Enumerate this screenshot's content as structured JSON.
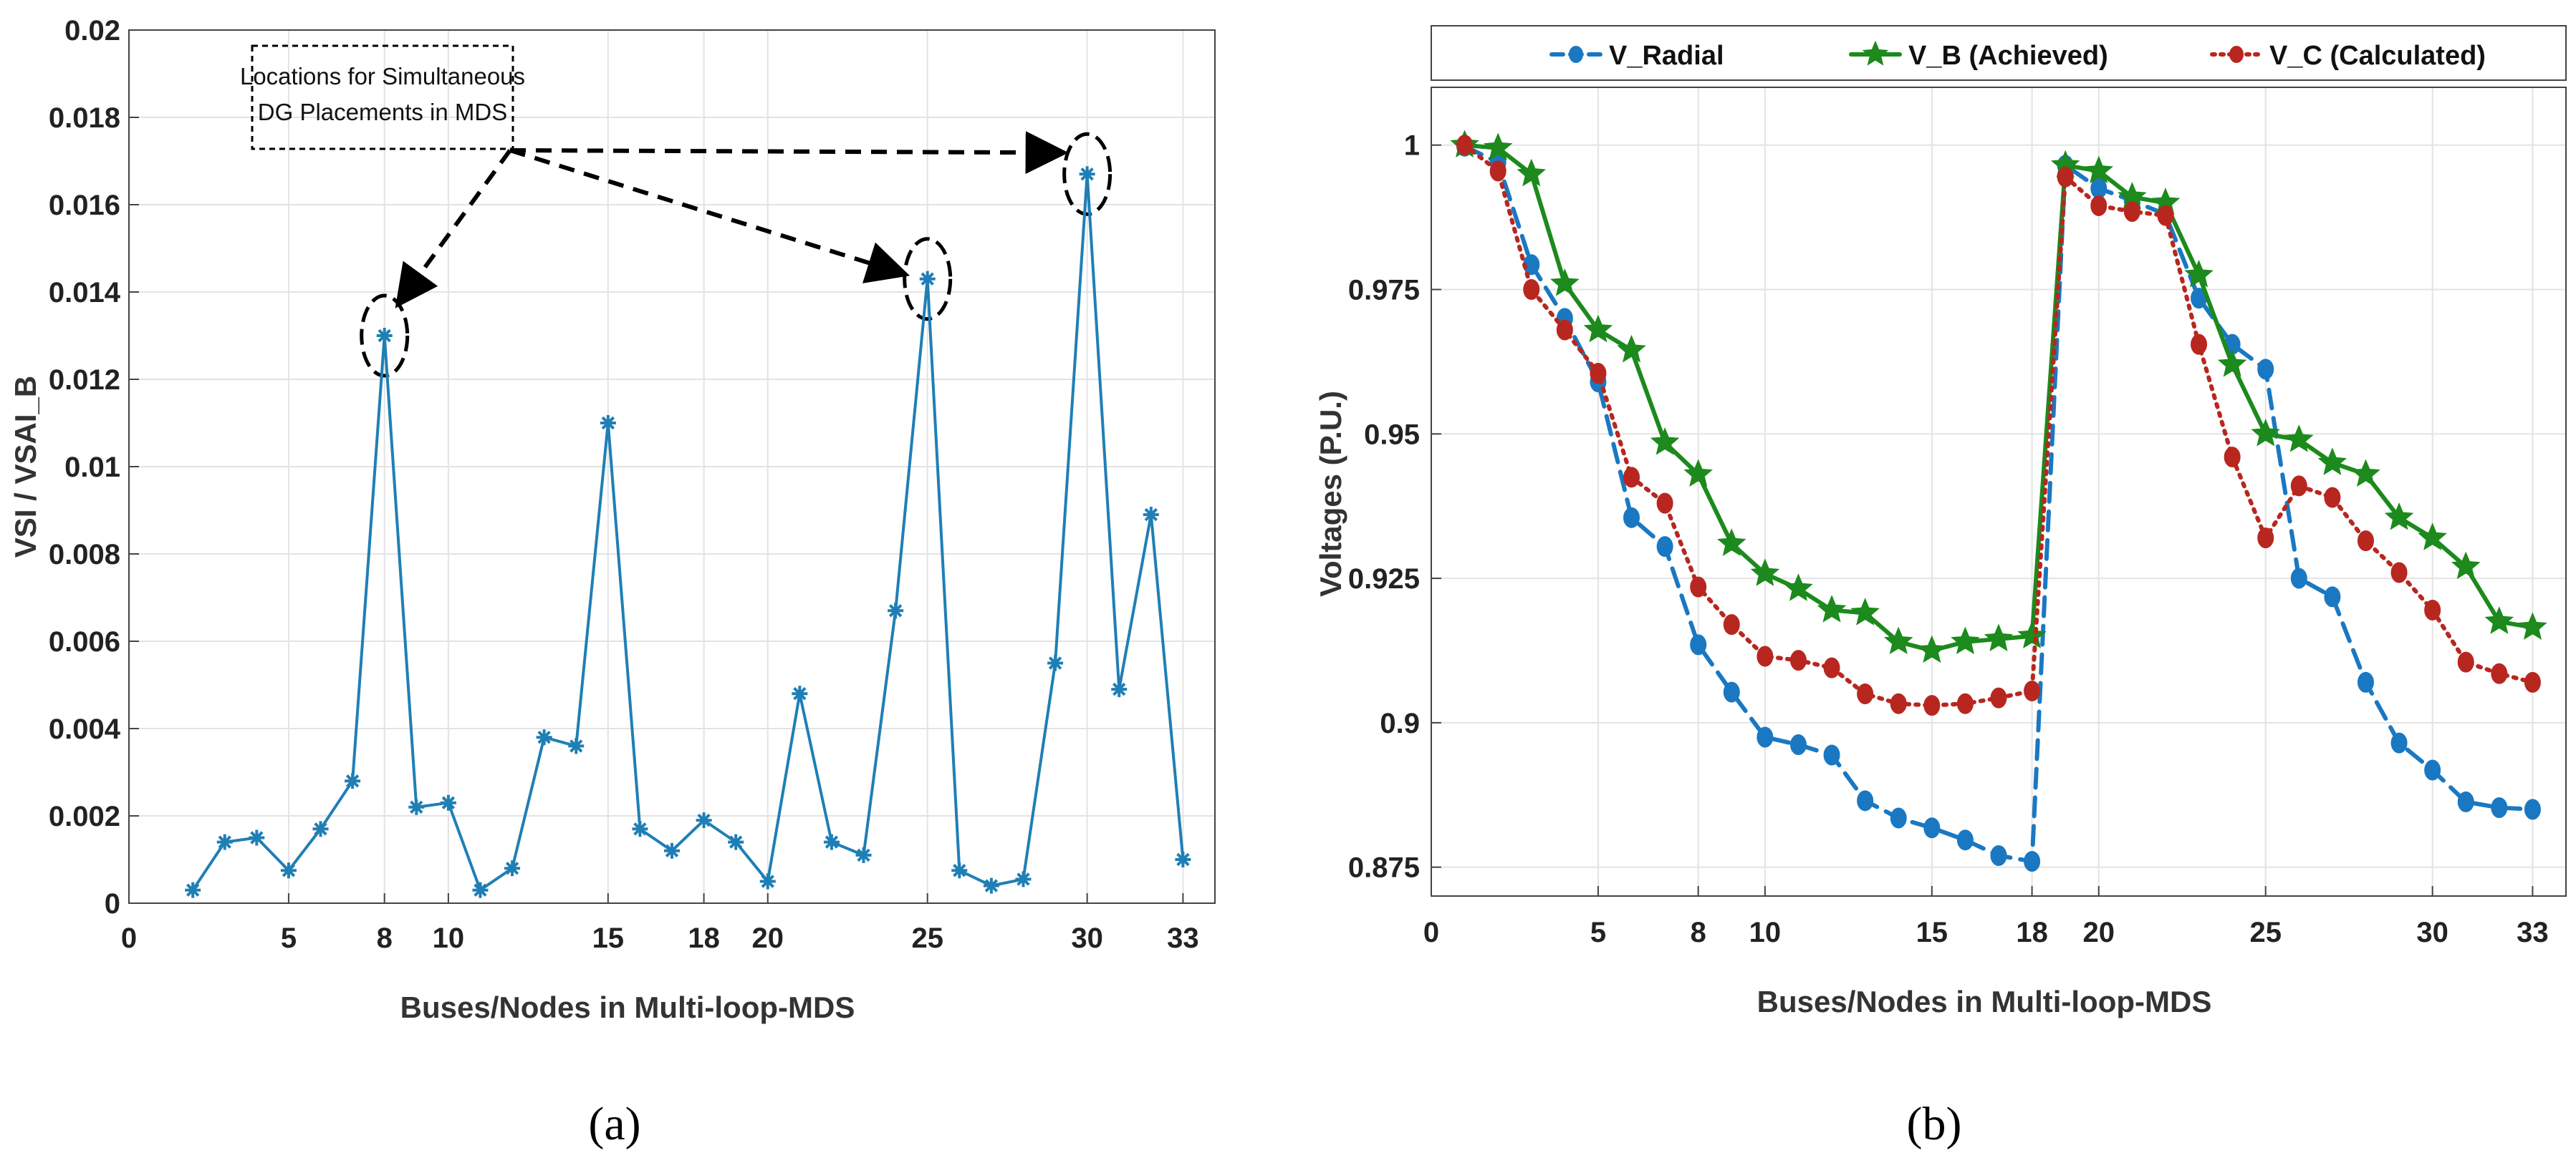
{
  "chart_data": [
    {
      "type": "line",
      "panel_caption": "(a)",
      "xlabel": "Buses/Nodes in Multi-loop-MDS",
      "ylabel": "VSI / VSAI_B",
      "xlim": [
        0,
        34
      ],
      "ylim": [
        0,
        0.02
      ],
      "xticks": [
        "0",
        "5",
        "8",
        "10",
        "15",
        "18",
        "20",
        "25",
        "30",
        "33"
      ],
      "yticks": [
        "0",
        "0.002",
        "0.004",
        "0.006",
        "0.008",
        "0.01",
        "0.012",
        "0.014",
        "0.016",
        "0.018",
        "0.02"
      ],
      "grid": true,
      "colors": {
        "series": "#1f7fb5",
        "annotation": "#000000"
      },
      "series": [
        {
          "marker": "asterisk",
          "x": [
            2,
            3,
            4,
            5,
            6,
            7,
            8,
            9,
            10,
            11,
            12,
            13,
            14,
            15,
            16,
            17,
            18,
            19,
            20,
            21,
            22,
            23,
            24,
            25,
            26,
            27,
            28,
            29,
            30,
            31,
            32,
            33
          ],
          "values": [
            0.0003,
            0.0014,
            0.0015,
            0.00075,
            0.0017,
            0.0028,
            0.013,
            0.0022,
            0.0023,
            0.0003,
            0.0008,
            0.0038,
            0.0036,
            0.011,
            0.0017,
            0.0012,
            0.0019,
            0.0014,
            0.0005,
            0.0048,
            0.0014,
            0.0011,
            0.0067,
            0.0143,
            0.00075,
            0.0004,
            0.00055,
            0.0055,
            0.0167,
            0.0049,
            0.0089,
            0.001
          ]
        }
      ],
      "annotation": {
        "text_line1": "Locations for Simultaneous",
        "text_line2": "DG Placements in MDS",
        "highlighted_points": [
          {
            "x": 8,
            "y": 0.013
          },
          {
            "x": 25,
            "y": 0.0143
          },
          {
            "x": 30,
            "y": 0.0167
          }
        ]
      }
    },
    {
      "type": "line",
      "panel_caption": "(b)",
      "xlabel": "Buses/Nodes in Multi-loop-MDS",
      "ylabel": "Voltages (P.U.)",
      "xlim": [
        0,
        34
      ],
      "ylim": [
        0.87,
        1.01
      ],
      "xticks": [
        "0",
        "5",
        "8",
        "10",
        "15",
        "18",
        "20",
        "25",
        "30",
        "33"
      ],
      "yticks": [
        "0.875",
        "0.9",
        "0.925",
        "0.95",
        "0.975",
        "1"
      ],
      "grid": true,
      "legend_position": "top",
      "x": [
        1,
        2,
        3,
        4,
        5,
        6,
        7,
        8,
        9,
        10,
        11,
        12,
        13,
        14,
        15,
        16,
        17,
        18,
        19,
        20,
        21,
        22,
        23,
        24,
        25,
        26,
        27,
        28,
        29,
        30,
        31,
        32,
        33
      ],
      "series": [
        {
          "name": "V_Radial",
          "color": "#1a78c2",
          "style": "dashed",
          "marker": "dot",
          "values": [
            0.9998,
            0.997,
            0.9793,
            0.97,
            0.959,
            0.9355,
            0.9305,
            0.9135,
            0.9053,
            0.8975,
            0.8962,
            0.8944,
            0.8865,
            0.8835,
            0.8818,
            0.8797,
            0.877,
            0.876,
            0.9965,
            0.9925,
            0.9904,
            0.988,
            0.9735,
            0.9655,
            0.9612,
            0.925,
            0.9218,
            0.907,
            0.8965,
            0.8918,
            0.8863,
            0.8853,
            0.885
          ]
        },
        {
          "name": "V_B (Achieved)",
          "color": "#1c8a1c",
          "style": "solid",
          "marker": "star",
          "values": [
            1.0,
            0.9995,
            0.995,
            0.976,
            0.968,
            0.9645,
            0.9485,
            0.943,
            0.931,
            0.9258,
            0.9232,
            0.9195,
            0.919,
            0.914,
            0.9125,
            0.914,
            0.9145,
            0.915,
            0.9965,
            0.9955,
            0.991,
            0.99,
            0.9775,
            0.962,
            0.95,
            0.949,
            0.945,
            0.943,
            0.9355,
            0.932,
            0.927,
            0.9175,
            0.9165
          ]
        },
        {
          "name": "V_C (Calculated)",
          "color": "#b8271f",
          "style": "dotted",
          "marker": "dot",
          "values": [
            1.0,
            0.9955,
            0.975,
            0.968,
            0.9605,
            0.9425,
            0.938,
            0.9235,
            0.917,
            0.9115,
            0.9108,
            0.9095,
            0.905,
            0.9033,
            0.903,
            0.9033,
            0.9043,
            0.9055,
            0.9945,
            0.9895,
            0.9885,
            0.9878,
            0.9655,
            0.946,
            0.932,
            0.941,
            0.939,
            0.9315,
            0.926,
            0.9195,
            0.9105,
            0.9085,
            0.907
          ]
        }
      ]
    }
  ]
}
